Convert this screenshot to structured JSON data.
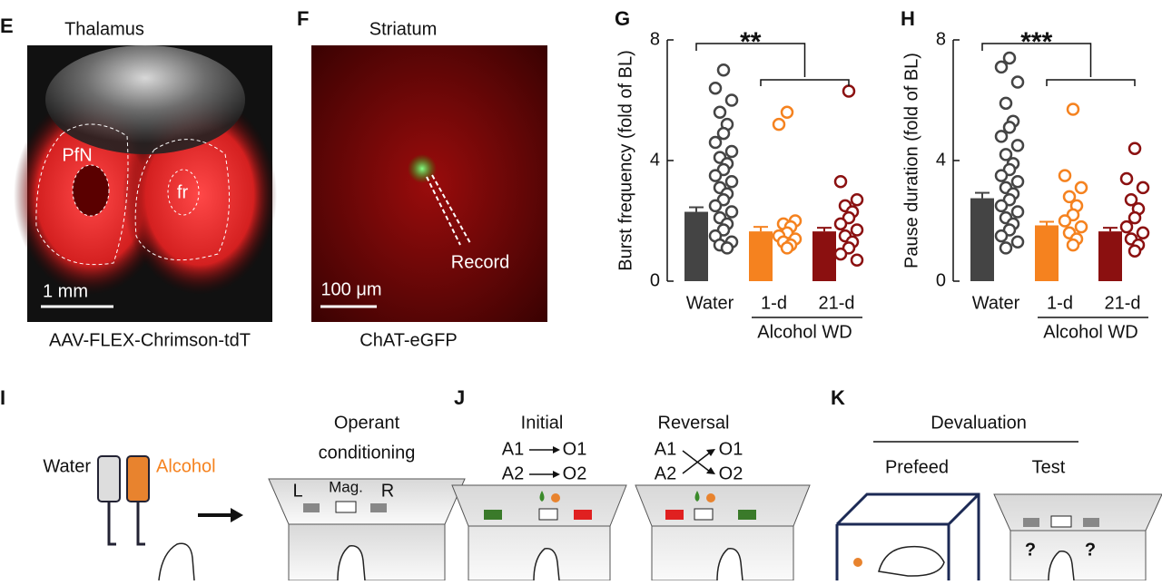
{
  "panels": {
    "E": {
      "letter": "E",
      "title": "Thalamus",
      "labels": [
        "PfN",
        "fr"
      ],
      "scale": "1 mm",
      "caption": "AAV-FLEX-Chrimson-tdT"
    },
    "F": {
      "letter": "F",
      "title": "Striatum",
      "annotation": "Record",
      "scale": "100 μm",
      "caption": "ChAT-eGFP"
    },
    "I": {
      "letter": "I",
      "water": "Water",
      "alcohol": "Alcohol",
      "box_title": [
        "Operant",
        "conditioning"
      ],
      "levers": [
        "L",
        "Mag.",
        "R"
      ]
    },
    "J": {
      "letter": "J",
      "initial": "Initial",
      "reversal": "Reversal",
      "actions": [
        "A1",
        "A2"
      ],
      "outcomes": [
        "O1",
        "O2"
      ]
    },
    "K": {
      "letter": "K",
      "title": "Devaluation",
      "prefeed": "Prefeed",
      "test": "Test",
      "unknown": "?"
    }
  },
  "chart_data": [
    {
      "type": "bar-scatter",
      "letter": "G",
      "ylabel": "Burst frequency (fold of BL)",
      "categories": [
        "Water",
        "1-d",
        "21-d"
      ],
      "group_label": "Alcohol WD",
      "significance": "**",
      "ylim": [
        0,
        8
      ],
      "yticks": [
        0,
        4,
        8
      ],
      "colors": [
        "#444444",
        "#f5821f",
        "#8b1010"
      ],
      "bars": {
        "values": [
          2.3,
          1.65,
          1.65
        ],
        "errors": [
          0.15,
          0.15,
          0.12
        ]
      },
      "points": [
        [
          7.0,
          6.4,
          6.0,
          5.6,
          5.2,
          4.9,
          4.6,
          4.3,
          4.1,
          3.9,
          3.7,
          3.5,
          3.3,
          3.1,
          2.9,
          2.7,
          2.5,
          2.3,
          2.1,
          1.9,
          1.7,
          1.5,
          1.3,
          1.2,
          1.1
        ],
        [
          5.6,
          5.2,
          2.0,
          1.9,
          1.8,
          1.6,
          1.5,
          1.4,
          1.3,
          1.2,
          1.1
        ],
        [
          6.3,
          3.3,
          2.7,
          2.5,
          2.3,
          2.1,
          1.9,
          1.7,
          1.5,
          1.3,
          1.1,
          0.9,
          0.7
        ]
      ]
    },
    {
      "type": "bar-scatter",
      "letter": "H",
      "ylabel": "Pause duration (fold of BL)",
      "categories": [
        "Water",
        "1-d",
        "21-d"
      ],
      "group_label": "Alcohol WD",
      "significance": "***",
      "ylim": [
        0,
        8
      ],
      "yticks": [
        0,
        4,
        8
      ],
      "colors": [
        "#444444",
        "#f5821f",
        "#8b1010"
      ],
      "bars": {
        "values": [
          2.75,
          1.85,
          1.65
        ],
        "errors": [
          0.18,
          0.12,
          0.12
        ]
      },
      "points": [
        [
          7.4,
          7.1,
          6.6,
          5.9,
          5.3,
          5.1,
          4.8,
          4.5,
          4.2,
          3.9,
          3.7,
          3.5,
          3.3,
          3.1,
          2.9,
          2.7,
          2.5,
          2.3,
          2.1,
          1.9,
          1.7,
          1.5,
          1.3,
          1.1
        ],
        [
          5.7,
          3.5,
          3.1,
          2.8,
          2.5,
          2.2,
          2.0,
          1.8,
          1.6,
          1.4,
          1.2
        ],
        [
          4.4,
          3.4,
          3.1,
          2.7,
          2.4,
          2.1,
          1.8,
          1.6,
          1.4,
          1.2,
          1.0
        ]
      ]
    }
  ]
}
